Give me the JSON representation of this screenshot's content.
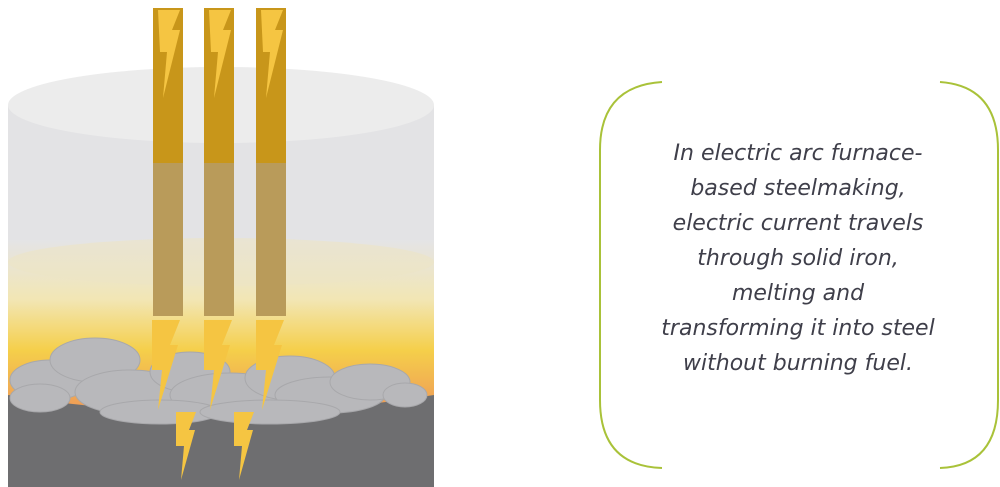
{
  "illustration": {
    "subject": "electric-arc-furnace",
    "electrode_count": 3,
    "colors": {
      "vessel_top": "#ececec",
      "vessel_body": "#e3e3e5",
      "melt_glow_yellow": "#f5d24a",
      "melt_glow_orange": "#f0a05a",
      "scrap_gray": "#b8b8bb",
      "base_dark": "#6e6e70",
      "electrode_upper": "#c8961a",
      "electrode_lower": "#b99b5a",
      "lightning": "#f5c542",
      "callout_border": "#a9c239"
    },
    "icons": [
      "electrode",
      "lightning-bolt-icon",
      "scrap-iron",
      "furnace-vessel"
    ]
  },
  "callout": {
    "lines": [
      "In electric arc furnace-",
      "based steelmaking,",
      "electric current travels",
      "through solid iron,",
      "melting and",
      "transforming it into steel",
      "without burning fuel."
    ]
  }
}
